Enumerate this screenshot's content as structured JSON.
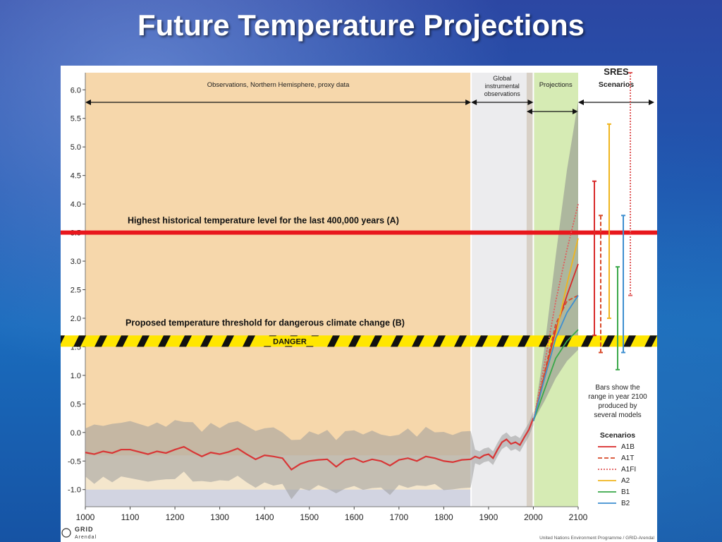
{
  "slide": {
    "title": "Future Temperature Projections"
  },
  "chart_data": {
    "type": "line",
    "xlim": [
      1000,
      2100
    ],
    "ylim": [
      -1.3,
      6.3
    ],
    "x_ticks": [
      1000,
      1100,
      1200,
      1300,
      1400,
      1500,
      1600,
      1700,
      1800,
      1900,
      2000,
      2100
    ],
    "x_tick_labels": [
      "1000",
      "1100",
      "1200",
      "1300",
      "1400",
      "1500",
      "1600",
      "1700",
      "1800",
      "1900",
      "2000",
      "2100"
    ],
    "y_ticks": [
      -1.0,
      -0.5,
      0.0,
      0.5,
      1.0,
      1.5,
      2.0,
      2.5,
      3.0,
      3.5,
      4.0,
      4.5,
      5.0,
      5.5,
      6.0
    ],
    "y_tick_labels": [
      "-1.0",
      "-0.5",
      "0.0",
      "0.5",
      "1.0",
      "1.5",
      "2.0",
      "2.5",
      "3.0",
      "3.5",
      "4.0",
      "4.5",
      "5.0",
      "5.5",
      "6.0"
    ],
    "periods": [
      {
        "label": "Observations, Northern Hemisphere, proxy data",
        "x_range": [
          1000,
          1861
        ],
        "color": "#f6d7ab"
      },
      {
        "label": "Global instrumental observations",
        "x_range": [
          1861,
          2000
        ],
        "color": "#ececee"
      },
      {
        "label": "Projections",
        "x_range": [
          2000,
          2100
        ],
        "color": "#d6ebb4"
      }
    ],
    "sres_header": [
      "SRES",
      "Scenarios"
    ],
    "reference_lines": [
      {
        "label": "Highest historical temperature level for the last 400,000 years (A)",
        "y": 3.5,
        "color": "#e8171c"
      },
      {
        "label": "Proposed temperature threshold for dangerous climate change (B)",
        "y": 1.6,
        "band_text": "DANGER"
      }
    ],
    "proxy_reconstruction": {
      "name": "proxy reconstruction (smoothed)",
      "color": "#d83636",
      "x": [
        1000,
        1020,
        1040,
        1060,
        1080,
        1100,
        1120,
        1140,
        1160,
        1180,
        1200,
        1220,
        1240,
        1260,
        1280,
        1300,
        1320,
        1340,
        1360,
        1380,
        1400,
        1420,
        1440,
        1460,
        1480,
        1500,
        1520,
        1540,
        1560,
        1580,
        1600,
        1620,
        1640,
        1660,
        1680,
        1700,
        1720,
        1740,
        1760,
        1780,
        1800,
        1820,
        1840,
        1860,
        1870,
        1880,
        1890,
        1900,
        1910,
        1920,
        1930,
        1940,
        1950,
        1960,
        1970,
        1980,
        1990,
        2000
      ],
      "y": [
        -0.35,
        -0.38,
        -0.33,
        -0.36,
        -0.3,
        -0.3,
        -0.34,
        -0.38,
        -0.33,
        -0.36,
        -0.3,
        -0.25,
        -0.34,
        -0.42,
        -0.35,
        -0.38,
        -0.34,
        -0.28,
        -0.38,
        -0.47,
        -0.4,
        -0.42,
        -0.45,
        -0.65,
        -0.55,
        -0.5,
        -0.48,
        -0.47,
        -0.6,
        -0.48,
        -0.45,
        -0.52,
        -0.47,
        -0.5,
        -0.58,
        -0.48,
        -0.45,
        -0.5,
        -0.42,
        -0.45,
        -0.5,
        -0.52,
        -0.48,
        -0.47,
        -0.42,
        -0.45,
        -0.4,
        -0.38,
        -0.45,
        -0.3,
        -0.17,
        -0.12,
        -0.2,
        -0.17,
        -0.22,
        -0.08,
        0.05,
        0.25
      ]
    },
    "projection_envelope": {
      "x": [
        2000,
        2025,
        2050,
        2075,
        2100
      ],
      "lower": [
        0.2,
        0.55,
        0.95,
        1.25,
        1.45
      ],
      "upper": [
        0.2,
        1.5,
        3.1,
        4.6,
        5.8
      ]
    },
    "scenarios": [
      {
        "name": "A1B",
        "color": "#d82a2a",
        "dash": "solid",
        "x": [
          2000,
          2025,
          2050,
          2075,
          2100
        ],
        "y": [
          0.2,
          1.0,
          1.8,
          2.4,
          2.95
        ],
        "range_2100": [
          1.7,
          4.4
        ]
      },
      {
        "name": "A1T",
        "color": "#d84a2a",
        "dash": "dashed",
        "x": [
          2000,
          2025,
          2050,
          2075,
          2100
        ],
        "y": [
          0.2,
          1.05,
          1.9,
          2.3,
          2.4
        ],
        "range_2100": [
          1.4,
          3.8
        ]
      },
      {
        "name": "A1FI",
        "color": "#e05c5c",
        "dash": "dotted",
        "x": [
          2000,
          2025,
          2050,
          2075,
          2100
        ],
        "y": [
          0.2,
          1.2,
          2.3,
          3.2,
          4.0
        ],
        "range_2100": [
          2.4,
          6.3
        ]
      },
      {
        "name": "A2",
        "color": "#f0b51e",
        "dash": "solid",
        "x": [
          2000,
          2025,
          2050,
          2075,
          2100
        ],
        "y": [
          0.2,
          0.95,
          1.7,
          2.6,
          3.4
        ],
        "range_2100": [
          2.0,
          5.4
        ]
      },
      {
        "name": "B1",
        "color": "#3aa84a",
        "dash": "solid",
        "x": [
          2000,
          2025,
          2050,
          2075,
          2100
        ],
        "y": [
          0.2,
          0.75,
          1.3,
          1.6,
          1.8
        ],
        "range_2100": [
          1.1,
          2.9
        ]
      },
      {
        "name": "B2",
        "color": "#3e8fd0",
        "dash": "solid",
        "x": [
          2000,
          2025,
          2050,
          2075,
          2100
        ],
        "y": [
          0.2,
          0.95,
          1.65,
          2.1,
          2.4
        ],
        "range_2100": [
          1.4,
          3.8
        ]
      }
    ],
    "legend": {
      "title": "Scenarios",
      "position": "right",
      "note": [
        "Bars show the",
        "range in year 2100",
        "produced by",
        "several models"
      ]
    },
    "credits": {
      "logo": "GRID Arendal",
      "source": "United Nations Environment Programme / GRID-Arendal"
    },
    "colors": {
      "accent_red": "#e8171c",
      "danger_yellow": "#ffe600"
    }
  }
}
